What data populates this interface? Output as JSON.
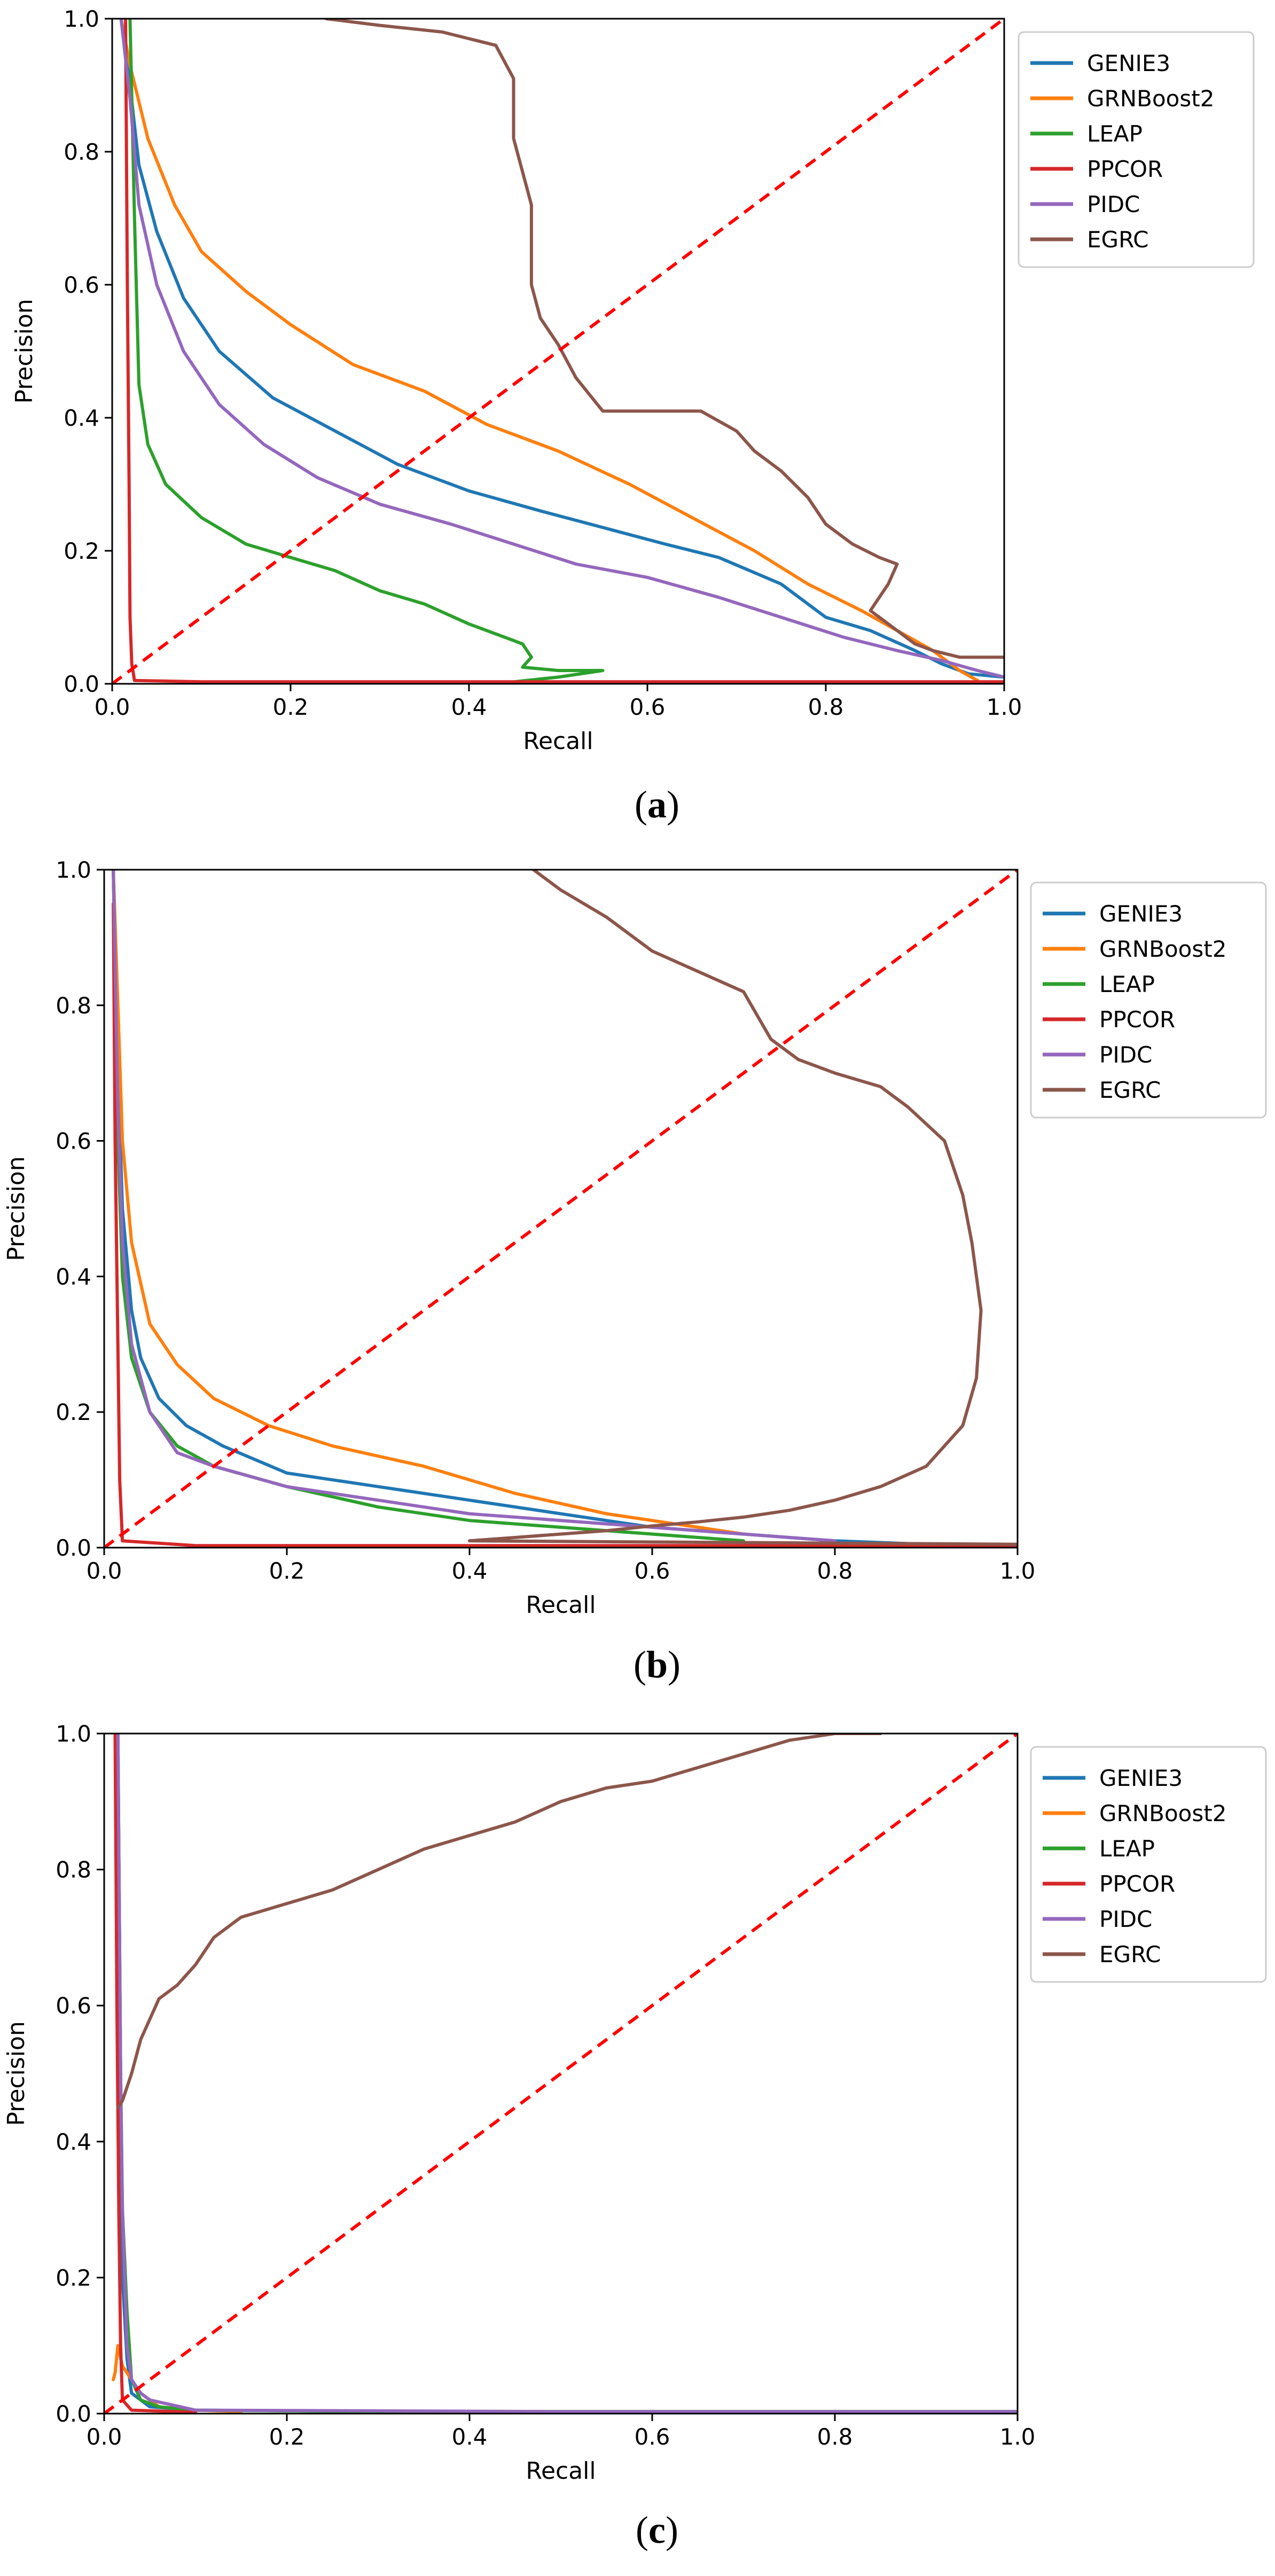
{
  "colors": {
    "GENIE3": "#1f77b4",
    "GRNBoost2": "#ff7f0e",
    "LEAP": "#2ca02c",
    "PPCOR": "#d62728",
    "PIDC": "#9467bd",
    "EGRC": "#8c564b",
    "diagonal": "#ff0000"
  },
  "chart_data": [
    {
      "type": "line",
      "panel_label": "(a)",
      "panel_letter": "a",
      "xlabel": "Recall",
      "ylabel": "Precision",
      "xlim": [
        0,
        1
      ],
      "ylim": [
        0,
        1
      ],
      "xticks": [
        "0.0",
        "0.2",
        "0.4",
        "0.6",
        "0.8",
        "1.0"
      ],
      "yticks": [
        "0.0",
        "0.2",
        "0.4",
        "0.6",
        "0.8",
        "1.0"
      ],
      "legend_position": "outside-right-top",
      "diagonal": [
        [
          0,
          0
        ],
        [
          1,
          1
        ]
      ],
      "series": [
        {
          "name": "GENIE3",
          "x": [
            0.01,
            0.02,
            0.03,
            0.05,
            0.08,
            0.12,
            0.18,
            0.25,
            0.32,
            0.4,
            0.48,
            0.55,
            0.62,
            0.68,
            0.75,
            0.8,
            0.85,
            0.9,
            0.93,
            0.96,
            1.0
          ],
          "y": [
            1.0,
            0.9,
            0.78,
            0.68,
            0.58,
            0.5,
            0.43,
            0.38,
            0.33,
            0.29,
            0.26,
            0.235,
            0.21,
            0.19,
            0.15,
            0.1,
            0.08,
            0.05,
            0.03,
            0.015,
            0.01
          ]
        },
        {
          "name": "GRNBoost2",
          "x": [
            0.01,
            0.02,
            0.04,
            0.07,
            0.1,
            0.15,
            0.2,
            0.27,
            0.35,
            0.42,
            0.5,
            0.58,
            0.65,
            0.72,
            0.78,
            0.84,
            0.88,
            0.92,
            0.95,
            0.97
          ],
          "y": [
            1.0,
            0.93,
            0.82,
            0.72,
            0.65,
            0.59,
            0.54,
            0.48,
            0.44,
            0.39,
            0.35,
            0.3,
            0.25,
            0.2,
            0.15,
            0.11,
            0.08,
            0.05,
            0.02,
            0.005
          ]
        },
        {
          "name": "LEAP",
          "x": [
            0.02,
            0.025,
            0.03,
            0.04,
            0.06,
            0.1,
            0.15,
            0.2,
            0.25,
            0.3,
            0.35,
            0.4,
            0.44,
            0.46,
            0.47,
            0.46,
            0.5,
            0.55,
            0.5,
            0.45
          ],
          "y": [
            1.0,
            0.7,
            0.45,
            0.36,
            0.3,
            0.25,
            0.21,
            0.19,
            0.17,
            0.14,
            0.12,
            0.09,
            0.07,
            0.06,
            0.04,
            0.025,
            0.02,
            0.02,
            0.01,
            0.003
          ]
        },
        {
          "name": "PPCOR",
          "x": [
            0.015,
            0.017,
            0.019,
            0.02,
            0.022,
            0.025,
            0.1,
            0.3,
            0.5,
            0.7,
            0.9,
            1.0
          ],
          "y": [
            1.0,
            0.6,
            0.3,
            0.1,
            0.03,
            0.005,
            0.003,
            0.003,
            0.003,
            0.003,
            0.003,
            0.003
          ]
        },
        {
          "name": "PIDC",
          "x": [
            0.01,
            0.02,
            0.03,
            0.05,
            0.08,
            0.12,
            0.17,
            0.23,
            0.3,
            0.38,
            0.45,
            0.52,
            0.6,
            0.68,
            0.75,
            0.82,
            0.88,
            0.93,
            0.97,
            1.0
          ],
          "y": [
            1.0,
            0.88,
            0.72,
            0.6,
            0.5,
            0.42,
            0.36,
            0.31,
            0.27,
            0.24,
            0.21,
            0.18,
            0.16,
            0.13,
            0.1,
            0.07,
            0.05,
            0.035,
            0.02,
            0.01
          ]
        },
        {
          "name": "EGRC",
          "x": [
            0.24,
            0.3,
            0.37,
            0.4,
            0.43,
            0.45,
            0.45,
            0.47,
            0.47,
            0.48,
            0.5,
            0.52,
            0.55,
            0.6,
            0.66,
            0.7,
            0.72,
            0.75,
            0.78,
            0.8,
            0.83,
            0.86,
            0.88,
            0.87,
            0.85,
            0.88,
            0.9,
            0.92,
            0.95,
            1.0
          ],
          "y": [
            1.0,
            0.99,
            0.98,
            0.97,
            0.96,
            0.91,
            0.82,
            0.72,
            0.6,
            0.55,
            0.51,
            0.46,
            0.41,
            0.41,
            0.41,
            0.38,
            0.35,
            0.32,
            0.28,
            0.24,
            0.21,
            0.19,
            0.18,
            0.15,
            0.11,
            0.08,
            0.06,
            0.05,
            0.04,
            0.04
          ]
        }
      ]
    },
    {
      "type": "line",
      "panel_label": "(b)",
      "panel_letter": "b",
      "xlabel": "Recall",
      "ylabel": "Precision",
      "xlim": [
        0,
        1
      ],
      "ylim": [
        0,
        1
      ],
      "xticks": [
        "0.0",
        "0.2",
        "0.4",
        "0.6",
        "0.8",
        "1.0"
      ],
      "yticks": [
        "0.0",
        "0.2",
        "0.4",
        "0.6",
        "0.8",
        "1.0"
      ],
      "legend_position": "outside-right-top",
      "diagonal": [
        [
          0,
          0
        ],
        [
          1,
          1
        ]
      ],
      "series": [
        {
          "name": "GENIE3",
          "x": [
            0.01,
            0.015,
            0.02,
            0.03,
            0.04,
            0.06,
            0.09,
            0.13,
            0.2,
            0.3,
            0.4,
            0.5,
            0.6,
            0.7,
            0.8,
            0.9
          ],
          "y": [
            1.0,
            0.7,
            0.5,
            0.35,
            0.28,
            0.22,
            0.18,
            0.15,
            0.11,
            0.09,
            0.07,
            0.05,
            0.03,
            0.02,
            0.01,
            0.005
          ]
        },
        {
          "name": "GRNBoost2",
          "x": [
            0.01,
            0.015,
            0.02,
            0.03,
            0.05,
            0.08,
            0.12,
            0.18,
            0.25,
            0.35,
            0.45,
            0.55,
            0.65,
            0.7
          ],
          "y": [
            1.0,
            0.8,
            0.6,
            0.45,
            0.33,
            0.27,
            0.22,
            0.18,
            0.15,
            0.12,
            0.08,
            0.05,
            0.03,
            0.02
          ]
        },
        {
          "name": "LEAP",
          "x": [
            0.01,
            0.015,
            0.02,
            0.03,
            0.05,
            0.08,
            0.12,
            0.2,
            0.3,
            0.4,
            0.5,
            0.6,
            0.7
          ],
          "y": [
            1.0,
            0.6,
            0.4,
            0.28,
            0.2,
            0.15,
            0.12,
            0.09,
            0.06,
            0.04,
            0.03,
            0.02,
            0.01
          ]
        },
        {
          "name": "PPCOR",
          "x": [
            0.01,
            0.012,
            0.015,
            0.017,
            0.02,
            0.1,
            0.3,
            0.5,
            0.7,
            1.0
          ],
          "y": [
            0.95,
            0.6,
            0.3,
            0.1,
            0.01,
            0.003,
            0.003,
            0.003,
            0.003,
            0.003
          ]
        },
        {
          "name": "PIDC",
          "x": [
            0.01,
            0.015,
            0.02,
            0.03,
            0.05,
            0.08,
            0.12,
            0.2,
            0.3,
            0.4,
            0.5,
            0.6,
            0.7,
            0.8
          ],
          "y": [
            1.0,
            0.65,
            0.45,
            0.3,
            0.2,
            0.14,
            0.12,
            0.09,
            0.07,
            0.05,
            0.04,
            0.03,
            0.02,
            0.01
          ]
        },
        {
          "name": "EGRC",
          "x": [
            0.47,
            0.5,
            0.55,
            0.6,
            0.65,
            0.7,
            0.73,
            0.76,
            0.8,
            0.85,
            0.88,
            0.92,
            0.94,
            0.95,
            0.96,
            0.955,
            0.94,
            0.9,
            0.85,
            0.8,
            0.75,
            0.7,
            0.65,
            0.6,
            0.55,
            0.5,
            0.45,
            0.4,
            1.0
          ],
          "y": [
            1.0,
            0.97,
            0.93,
            0.88,
            0.85,
            0.82,
            0.75,
            0.72,
            0.7,
            0.68,
            0.65,
            0.6,
            0.52,
            0.45,
            0.35,
            0.25,
            0.18,
            0.12,
            0.09,
            0.07,
            0.055,
            0.045,
            0.038,
            0.032,
            0.025,
            0.02,
            0.015,
            0.01,
            0.005
          ]
        }
      ]
    },
    {
      "type": "line",
      "panel_label": "(c)",
      "panel_letter": "c",
      "xlabel": "Recall",
      "ylabel": "Precision",
      "xlim": [
        0,
        1
      ],
      "ylim": [
        0,
        1
      ],
      "xticks": [
        "0.0",
        "0.2",
        "0.4",
        "0.6",
        "0.8",
        "1.0"
      ],
      "yticks": [
        "0.0",
        "0.2",
        "0.4",
        "0.6",
        "0.8",
        "1.0"
      ],
      "legend_position": "outside-right-top",
      "diagonal": [
        [
          0,
          0
        ],
        [
          1,
          1
        ]
      ],
      "series": [
        {
          "name": "GENIE3",
          "x": [
            0.015,
            0.018,
            0.02,
            0.025,
            0.03,
            0.05,
            0.1,
            0.3,
            0.6,
            1.0
          ],
          "y": [
            1.0,
            0.5,
            0.2,
            0.08,
            0.03,
            0.01,
            0.005,
            0.003,
            0.003,
            0.003
          ]
        },
        {
          "name": "GRNBoost2",
          "x": [
            0.01,
            0.012,
            0.015,
            0.02,
            0.03,
            0.04,
            0.06,
            0.1,
            0.15
          ],
          "y": [
            0.05,
            0.06,
            0.1,
            0.07,
            0.05,
            0.03,
            0.01,
            0.005,
            0.003
          ]
        },
        {
          "name": "LEAP",
          "x": [
            0.015,
            0.018,
            0.02,
            0.025,
            0.03,
            0.04,
            0.06,
            0.1,
            0.3,
            1.0
          ],
          "y": [
            1.0,
            0.5,
            0.3,
            0.15,
            0.05,
            0.02,
            0.01,
            0.005,
            0.003,
            0.003
          ]
        },
        {
          "name": "PPCOR",
          "x": [
            0.012,
            0.014,
            0.016,
            0.018,
            0.02,
            0.03,
            0.1
          ],
          "y": [
            1.0,
            0.6,
            0.3,
            0.1,
            0.02,
            0.005,
            0.002
          ]
        },
        {
          "name": "PIDC",
          "x": [
            0.015,
            0.018,
            0.02,
            0.025,
            0.03,
            0.04,
            0.05,
            0.1,
            0.5,
            1.0
          ],
          "y": [
            1.0,
            0.5,
            0.3,
            0.1,
            0.05,
            0.03,
            0.02,
            0.005,
            0.003,
            0.003
          ]
        },
        {
          "name": "EGRC",
          "x": [
            0.015,
            0.02,
            0.03,
            0.04,
            0.05,
            0.06,
            0.08,
            0.1,
            0.12,
            0.15,
            0.2,
            0.25,
            0.3,
            0.35,
            0.4,
            0.45,
            0.5,
            0.55,
            0.6,
            0.65,
            0.7,
            0.75,
            0.8,
            0.85
          ],
          "y": [
            0.45,
            0.46,
            0.5,
            0.55,
            0.58,
            0.61,
            0.63,
            0.66,
            0.7,
            0.73,
            0.75,
            0.77,
            0.8,
            0.83,
            0.85,
            0.87,
            0.9,
            0.92,
            0.93,
            0.95,
            0.97,
            0.99,
            1.0,
            1.0
          ]
        }
      ]
    }
  ]
}
